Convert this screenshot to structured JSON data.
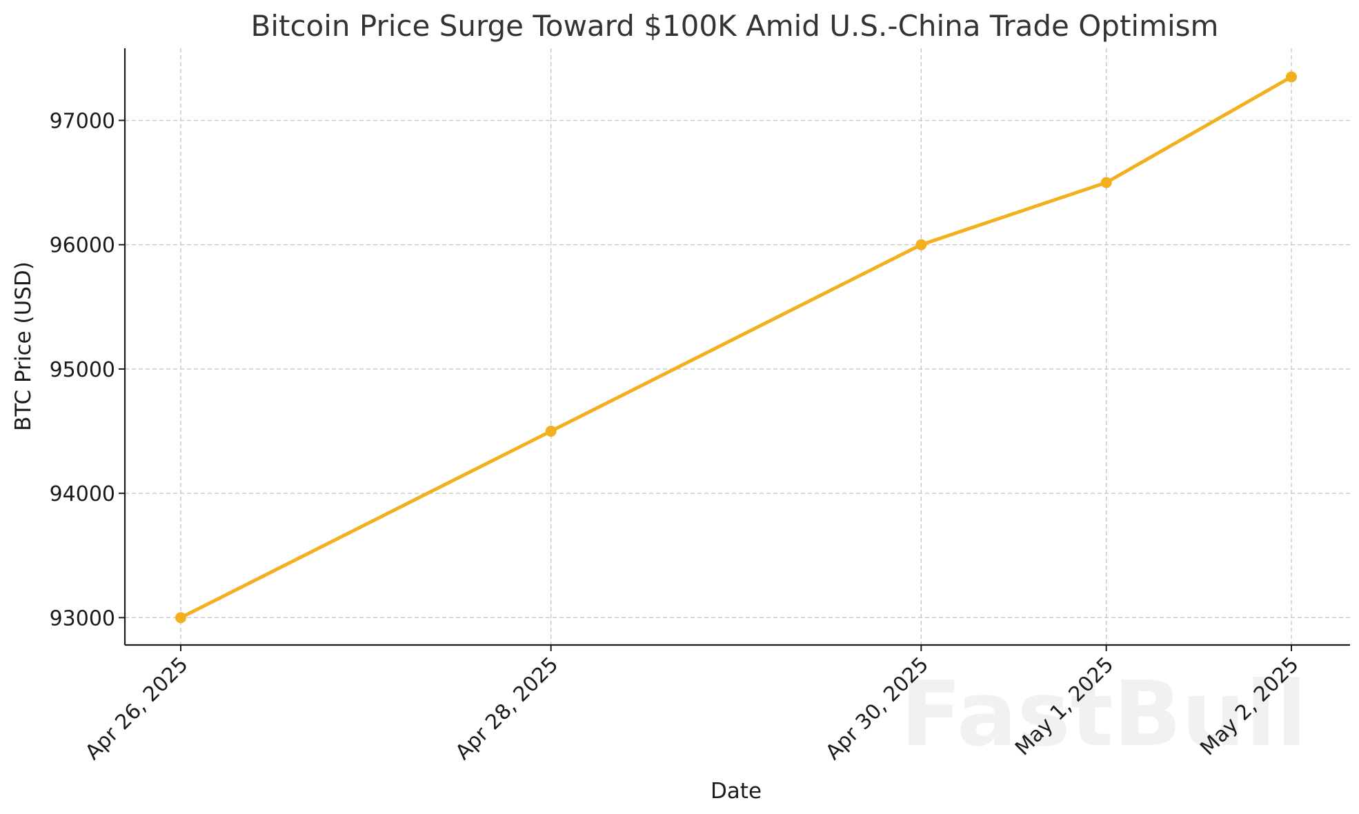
{
  "watermark": "FastBull",
  "colors": {
    "series": "#f2b01e",
    "grid": "#c8c8c8",
    "axis": "#1a1a1a",
    "title": "#333333"
  },
  "chart_data": {
    "type": "line",
    "title": "Bitcoin Price Surge Toward $100K Amid U.S.-China Trade Optimism",
    "xlabel": "Date",
    "ylabel": "BTC Price (USD)",
    "x_scale": "date",
    "x": [
      "2025-04-26",
      "2025-04-28",
      "2025-04-30",
      "2025-05-01",
      "2025-05-02"
    ],
    "x_tick_labels": [
      "Apr 26, 2025",
      "Apr 28, 2025",
      "Apr 30, 2025",
      "May 1, 2025",
      "May 2, 2025"
    ],
    "y_ticks": [
      93000,
      94000,
      95000,
      96000,
      97000
    ],
    "ylim": [
      92780,
      97580
    ],
    "grid": true,
    "legend": "none",
    "series": [
      {
        "values": [
          93000,
          94500,
          96000,
          96500,
          97350
        ],
        "color": "#f2b01e",
        "marker": "circle"
      }
    ]
  }
}
